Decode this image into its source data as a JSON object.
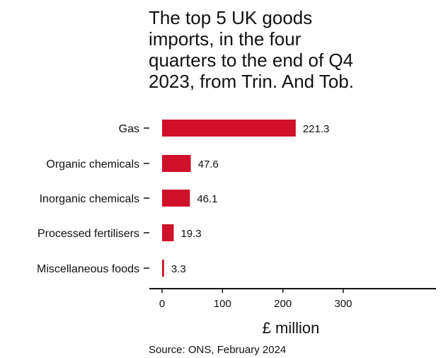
{
  "chart_data": {
    "type": "bar",
    "orientation": "horizontal",
    "title_lines": [
      "The top 5 UK goods",
      "imports, in the four",
      "quarters to the end of Q4",
      "2023, from Trin. And Tob."
    ],
    "categories": [
      "Gas",
      "Organic chemicals",
      "Inorganic chemicals",
      "Processed fertilisers",
      "Miscellaneous foods"
    ],
    "values": [
      221.3,
      47.6,
      46.1,
      19.3,
      3.3
    ],
    "data_labels": [
      "221.3",
      "47.6",
      "46.1",
      "19.3",
      "3.3"
    ],
    "xlabel": "£ million",
    "ylabel": "",
    "xlim": [
      0,
      300
    ],
    "xticks": [
      0,
      100,
      200,
      300
    ],
    "grid": false,
    "bar_color": "#d0112b"
  },
  "source": "Source: ONS, February 2024"
}
